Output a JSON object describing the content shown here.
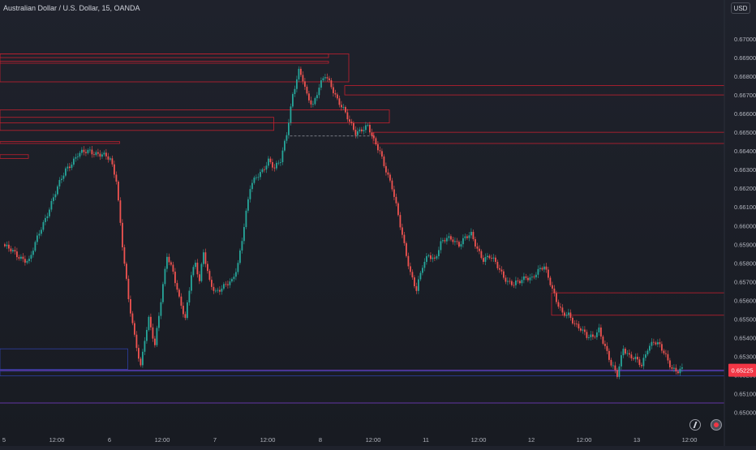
{
  "header": {
    "symbol_title": "Australian Dollar / U.S. Dollar, 15, OANDA",
    "currency": "USD"
  },
  "icons": {
    "alert": "lightning-icon",
    "record": "record-icon"
  },
  "colors": {
    "up_candle": "#26a69a",
    "down_candle": "#ef5350",
    "zone_red": "#c2202f",
    "zone_blue": "#2e3fa3",
    "line_purple": "#7b3fd1",
    "price_label": "#f23645"
  },
  "chart_data": {
    "type": "candlestick",
    "title": "Australian Dollar / U.S. Dollar, 15, OANDA",
    "ylim": [
      0.6495,
      0.671
    ],
    "y_ticks": [
      "0.67000",
      "0.66900",
      "0.66800",
      "0.66700",
      "0.66600",
      "0.66500",
      "0.66400",
      "0.66300",
      "0.66200",
      "0.66100",
      "0.66000",
      "0.65900",
      "0.65800",
      "0.65700",
      "0.65600",
      "0.65500",
      "0.65400",
      "0.65300",
      "0.65200",
      "0.65100",
      "0.65000"
    ],
    "x_ticks": [
      "5",
      "12:00",
      "6",
      "12:00",
      "7",
      "12:00",
      "8",
      "12:00",
      "11",
      "12:00",
      "12",
      "12:00",
      "13",
      "12:00"
    ],
    "x_tick_index": [
      0,
      26,
      52,
      78,
      104,
      130,
      156,
      182,
      208,
      234,
      260,
      286,
      312,
      338
    ],
    "current_price": 0.65225,
    "price_path": [
      [
        0,
        0.6589
      ],
      [
        6,
        0.6584
      ],
      [
        12,
        0.6581
      ],
      [
        17,
        0.6596
      ],
      [
        24,
        0.6615
      ],
      [
        30,
        0.663
      ],
      [
        36,
        0.6638
      ],
      [
        42,
        0.664
      ],
      [
        48,
        0.6638
      ],
      [
        52,
        0.6635
      ],
      [
        55,
        0.6625
      ],
      [
        58,
        0.659
      ],
      [
        61,
        0.656
      ],
      [
        64,
        0.654
      ],
      [
        67,
        0.6525
      ],
      [
        69,
        0.654
      ],
      [
        71,
        0.655
      ],
      [
        74,
        0.6535
      ],
      [
        77,
        0.656
      ],
      [
        80,
        0.6585
      ],
      [
        83,
        0.6575
      ],
      [
        86,
        0.656
      ],
      [
        89,
        0.655
      ],
      [
        92,
        0.6575
      ],
      [
        94,
        0.658
      ],
      [
        96,
        0.657
      ],
      [
        98,
        0.6585
      ],
      [
        101,
        0.657
      ],
      [
        104,
        0.6565
      ],
      [
        108,
        0.6567
      ],
      [
        112,
        0.657
      ],
      [
        115,
        0.658
      ],
      [
        118,
        0.66
      ],
      [
        121,
        0.662
      ],
      [
        124,
        0.6626
      ],
      [
        127,
        0.663
      ],
      [
        130,
        0.6635
      ],
      [
        133,
        0.663
      ],
      [
        136,
        0.6635
      ],
      [
        139,
        0.665
      ],
      [
        142,
        0.667
      ],
      [
        145,
        0.6682
      ],
      [
        147,
        0.6678
      ],
      [
        149,
        0.667
      ],
      [
        152,
        0.6665
      ],
      [
        155,
        0.6674
      ],
      [
        158,
        0.668
      ],
      [
        161,
        0.6675
      ],
      [
        164,
        0.6668
      ],
      [
        167,
        0.6662
      ],
      [
        170,
        0.6655
      ],
      [
        173,
        0.665
      ],
      [
        176,
        0.6652
      ],
      [
        179,
        0.6653
      ],
      [
        182,
        0.6645
      ],
      [
        185,
        0.664
      ],
      [
        188,
        0.663
      ],
      [
        191,
        0.662
      ],
      [
        194,
        0.6605
      ],
      [
        197,
        0.659
      ],
      [
        200,
        0.6575
      ],
      [
        203,
        0.6565
      ],
      [
        206,
        0.6578
      ],
      [
        209,
        0.6585
      ],
      [
        212,
        0.6582
      ],
      [
        215,
        0.659
      ],
      [
        218,
        0.6593
      ],
      [
        221,
        0.6593
      ],
      [
        224,
        0.659
      ],
      [
        227,
        0.6593
      ],
      [
        230,
        0.6595
      ],
      [
        233,
        0.6588
      ],
      [
        236,
        0.6582
      ],
      [
        239,
        0.6583
      ],
      [
        242,
        0.658
      ],
      [
        245,
        0.6575
      ],
      [
        248,
        0.657
      ],
      [
        251,
        0.6568
      ],
      [
        254,
        0.657
      ],
      [
        257,
        0.6573
      ],
      [
        260,
        0.6572
      ],
      [
        263,
        0.6575
      ],
      [
        266,
        0.6578
      ],
      [
        269,
        0.657
      ],
      [
        272,
        0.656
      ],
      [
        275,
        0.6552
      ],
      [
        278,
        0.6552
      ],
      [
        281,
        0.6548
      ],
      [
        284,
        0.6545
      ],
      [
        287,
        0.654
      ],
      [
        290,
        0.654
      ],
      [
        293,
        0.6545
      ],
      [
        296,
        0.6535
      ],
      [
        299,
        0.6525
      ],
      [
        302,
        0.652
      ],
      [
        305,
        0.6535
      ],
      [
        308,
        0.653
      ],
      [
        311,
        0.6528
      ],
      [
        314,
        0.6525
      ],
      [
        317,
        0.6535
      ],
      [
        320,
        0.6538
      ],
      [
        323,
        0.6535
      ],
      [
        326,
        0.653
      ],
      [
        329,
        0.6524
      ],
      [
        332,
        0.6522
      ],
      [
        334,
        0.65225
      ]
    ],
    "zones": [
      {
        "color": "red",
        "x0": -10,
        "x1": 160,
        "y_top": 0.6692,
        "y_bot": 0.669
      },
      {
        "color": "red",
        "x0": -10,
        "x1": 170,
        "y_top": 0.6692,
        "y_bot": 0.6677
      },
      {
        "color": "red",
        "x0": -10,
        "x1": 160,
        "y_top": 0.6688,
        "y_bot": 0.6687
      },
      {
        "color": "red",
        "x0": -10,
        "x1": 190,
        "y_top": 0.6662,
        "y_bot": 0.6655
      },
      {
        "color": "red",
        "x0": -10,
        "x1": 133,
        "y_top": 0.6658,
        "y_bot": 0.6651
      },
      {
        "color": "red",
        "x0": -10,
        "x1": 57,
        "y_top": 0.6645,
        "y_bot": 0.6644
      },
      {
        "color": "red",
        "x0": -10,
        "x1": 12,
        "y_top": 0.6638,
        "y_bot": 0.6636
      },
      {
        "color": "red",
        "x0": 168,
        "x1": 360,
        "y_top": 0.6675,
        "y_bot": 0.667
      },
      {
        "color": "red",
        "x0": 182,
        "x1": 360,
        "y_top": 0.665,
        "y_bot": 0.6644
      },
      {
        "color": "red",
        "x0": 270,
        "x1": 360,
        "y_top": 0.6564,
        "y_bot": 0.6552
      },
      {
        "color": "blue",
        "x0": -10,
        "x1": 61,
        "y_top": 0.6534,
        "y_bot": 0.6523
      },
      {
        "color": "blue",
        "x0": -10,
        "x1": 360,
        "y_top": 0.6522,
        "y_bot": 0.65195
      }
    ],
    "lines": [
      {
        "style": "dashed",
        "color": "white",
        "x0": 141,
        "x1": 182,
        "y": 0.6648
      },
      {
        "style": "solid",
        "color": "purple",
        "x0": -10,
        "x1": 360,
        "y": 0.65225
      },
      {
        "style": "solid",
        "color": "purple",
        "x0": -10,
        "x1": 360,
        "y": 0.6505
      }
    ]
  }
}
